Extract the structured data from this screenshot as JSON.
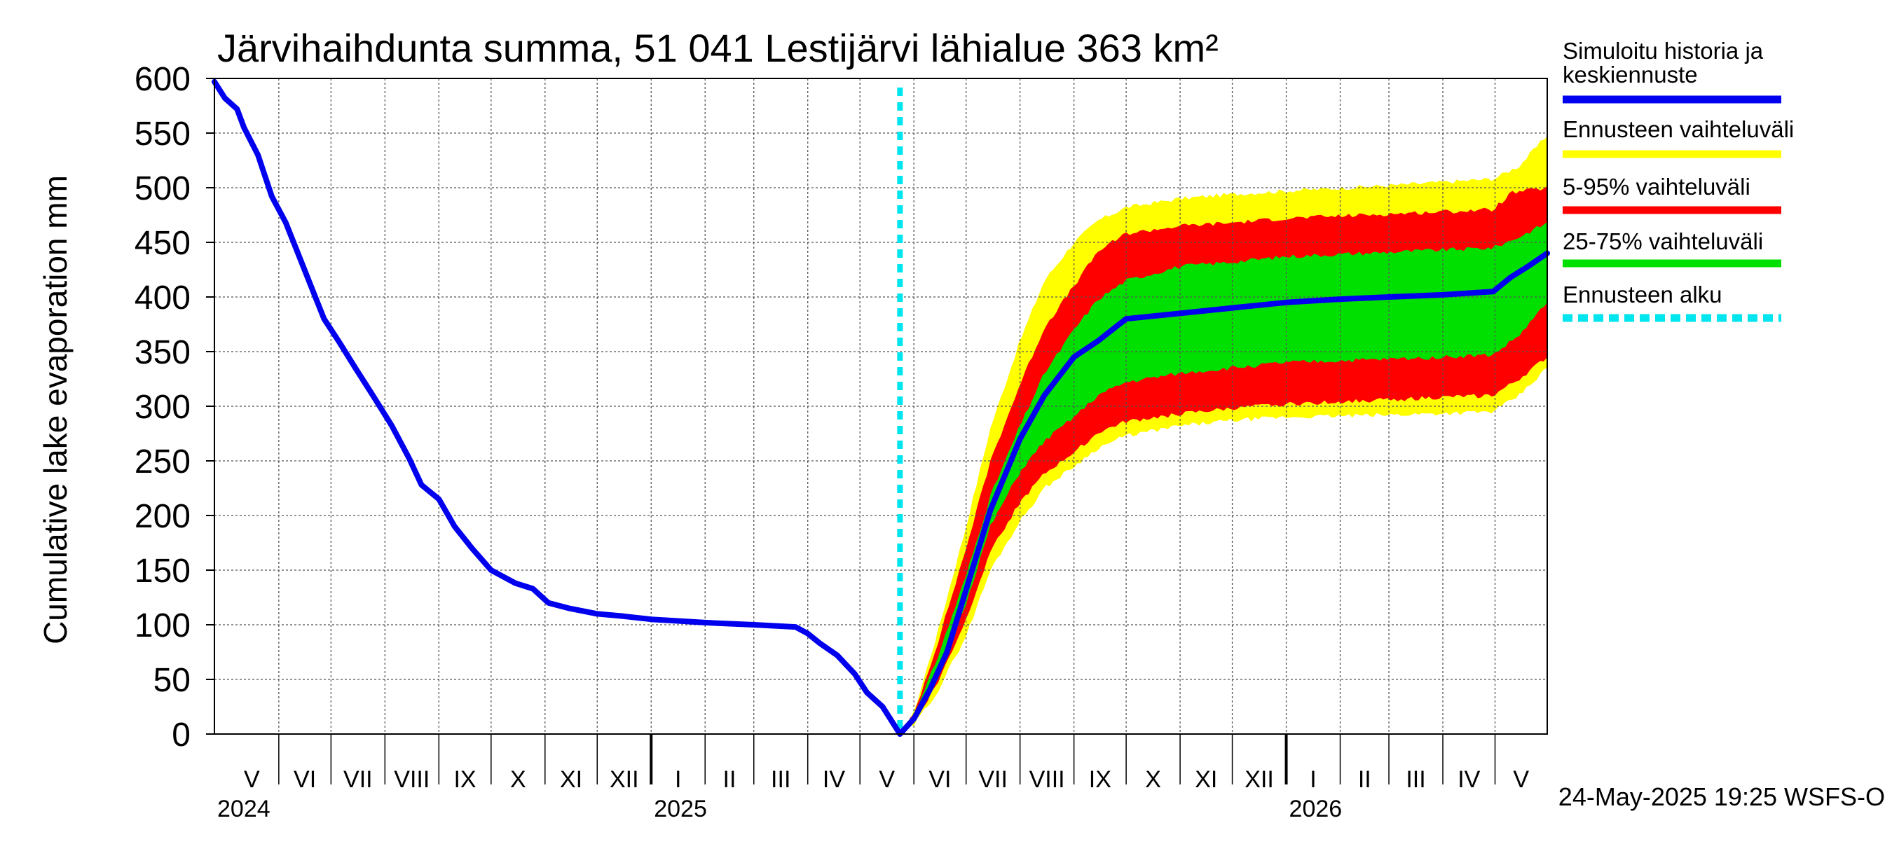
{
  "chart_data": {
    "type": "area",
    "title": "Järvihaihdunta summa, 51 041 Lestijärvi lähialue 363 km²",
    "ylabel": "Cumulative lake evaporation   mm",
    "ylim": [
      0,
      600
    ],
    "xlim": [
      "2024-04-25",
      "2026-05-31"
    ],
    "yticks": [
      0,
      50,
      100,
      150,
      200,
      250,
      300,
      350,
      400,
      450,
      500,
      550,
      600
    ],
    "grid": true,
    "legend_position": "right",
    "months": [
      {
        "label": "V",
        "start": "2024-05-01",
        "end": "2024-06-01"
      },
      {
        "label": "VI",
        "start": "2024-06-01",
        "end": "2024-07-01"
      },
      {
        "label": "VII",
        "start": "2024-07-01",
        "end": "2024-08-01"
      },
      {
        "label": "VIII",
        "start": "2024-08-01",
        "end": "2024-09-01"
      },
      {
        "label": "IX",
        "start": "2024-09-01",
        "end": "2024-10-01"
      },
      {
        "label": "X",
        "start": "2024-10-01",
        "end": "2024-11-01"
      },
      {
        "label": "XI",
        "start": "2024-11-01",
        "end": "2024-12-01"
      },
      {
        "label": "XII",
        "start": "2024-12-01",
        "end": "2025-01-01"
      },
      {
        "label": "I",
        "start": "2025-01-01",
        "end": "2025-02-01"
      },
      {
        "label": "II",
        "start": "2025-02-01",
        "end": "2025-03-01"
      },
      {
        "label": "III",
        "start": "2025-03-01",
        "end": "2025-04-01"
      },
      {
        "label": "IV",
        "start": "2025-04-01",
        "end": "2025-05-01"
      },
      {
        "label": "V",
        "start": "2025-05-01",
        "end": "2025-06-01"
      },
      {
        "label": "VI",
        "start": "2025-06-01",
        "end": "2025-07-01"
      },
      {
        "label": "VII",
        "start": "2025-07-01",
        "end": "2025-08-01"
      },
      {
        "label": "VIII",
        "start": "2025-08-01",
        "end": "2025-09-01"
      },
      {
        "label": "IX",
        "start": "2025-09-01",
        "end": "2025-10-01"
      },
      {
        "label": "X",
        "start": "2025-10-01",
        "end": "2025-11-01"
      },
      {
        "label": "XI",
        "start": "2025-11-01",
        "end": "2025-12-01"
      },
      {
        "label": "XII",
        "start": "2025-12-01",
        "end": "2026-01-01"
      },
      {
        "label": "I",
        "start": "2026-01-01",
        "end": "2026-02-01"
      },
      {
        "label": "II",
        "start": "2026-02-01",
        "end": "2026-03-01"
      },
      {
        "label": "III",
        "start": "2026-03-01",
        "end": "2026-04-01"
      },
      {
        "label": "IV",
        "start": "2026-04-01",
        "end": "2026-05-01"
      },
      {
        "label": "V",
        "start": "2026-05-01",
        "end": "2026-06-01"
      }
    ],
    "years": [
      {
        "label": "2024",
        "date": "2024-04-25"
      },
      {
        "label": "2025",
        "date": "2025-01-01"
      },
      {
        "label": "2026",
        "date": "2026-01-01"
      }
    ],
    "forecast_start": "2025-05-24",
    "bands": [
      {
        "name": "Ennusteen vaihteluväli",
        "color": "#ffff00",
        "upper": [
          [
            "2025-05-24",
            0
          ],
          [
            "2025-06-01",
            20
          ],
          [
            "2025-06-15",
            95
          ],
          [
            "2025-07-01",
            190
          ],
          [
            "2025-07-15",
            280
          ],
          [
            "2025-08-01",
            360
          ],
          [
            "2025-08-15",
            415
          ],
          [
            "2025-09-01",
            450
          ],
          [
            "2025-09-15",
            470
          ],
          [
            "2025-10-01",
            482
          ],
          [
            "2025-11-01",
            490
          ],
          [
            "2025-12-01",
            494
          ],
          [
            "2026-01-01",
            497
          ],
          [
            "2026-03-01",
            502
          ],
          [
            "2026-04-30",
            508
          ],
          [
            "2026-05-15",
            520
          ],
          [
            "2026-05-31",
            548
          ]
        ],
        "lower": [
          [
            "2025-05-24",
            0
          ],
          [
            "2025-06-01",
            8
          ],
          [
            "2025-06-15",
            40
          ],
          [
            "2025-07-01",
            90
          ],
          [
            "2025-07-15",
            150
          ],
          [
            "2025-08-01",
            195
          ],
          [
            "2025-08-15",
            225
          ],
          [
            "2025-09-01",
            245
          ],
          [
            "2025-09-15",
            262
          ],
          [
            "2025-10-01",
            273
          ],
          [
            "2025-11-01",
            282
          ],
          [
            "2025-12-01",
            287
          ],
          [
            "2026-01-01",
            290
          ],
          [
            "2026-03-01",
            292
          ],
          [
            "2026-04-30",
            295
          ],
          [
            "2026-05-15",
            310
          ],
          [
            "2026-05-31",
            335
          ]
        ]
      },
      {
        "name": "5-95% vaihteluväli",
        "color": "#ff0000",
        "upper": [
          [
            "2025-05-24",
            0
          ],
          [
            "2025-06-01",
            18
          ],
          [
            "2025-06-15",
            85
          ],
          [
            "2025-07-01",
            170
          ],
          [
            "2025-07-15",
            250
          ],
          [
            "2025-08-01",
            320
          ],
          [
            "2025-08-15",
            372
          ],
          [
            "2025-09-01",
            410
          ],
          [
            "2025-09-15",
            442
          ],
          [
            "2025-10-01",
            458
          ],
          [
            "2025-11-01",
            465
          ],
          [
            "2025-12-01",
            468
          ],
          [
            "2026-01-01",
            472
          ],
          [
            "2026-03-01",
            476
          ],
          [
            "2026-04-30",
            480
          ],
          [
            "2026-05-10",
            495
          ],
          [
            "2026-05-31",
            500
          ]
        ],
        "lower": [
          [
            "2025-05-24",
            0
          ],
          [
            "2025-06-01",
            10
          ],
          [
            "2025-06-15",
            48
          ],
          [
            "2025-07-01",
            105
          ],
          [
            "2025-07-15",
            168
          ],
          [
            "2025-08-01",
            212
          ],
          [
            "2025-08-15",
            238
          ],
          [
            "2025-09-01",
            258
          ],
          [
            "2025-09-15",
            276
          ],
          [
            "2025-10-01",
            286
          ],
          [
            "2025-11-01",
            293
          ],
          [
            "2025-12-01",
            298
          ],
          [
            "2026-01-01",
            302
          ],
          [
            "2026-03-01",
            306
          ],
          [
            "2026-04-30",
            310
          ],
          [
            "2026-05-15",
            325
          ],
          [
            "2026-05-31",
            345
          ]
        ]
      },
      {
        "name": "25-75% vaihteluväli",
        "color": "#00e000",
        "upper": [
          [
            "2025-05-24",
            0
          ],
          [
            "2025-06-01",
            15
          ],
          [
            "2025-06-15",
            72
          ],
          [
            "2025-07-01",
            145
          ],
          [
            "2025-07-15",
            218
          ],
          [
            "2025-08-01",
            282
          ],
          [
            "2025-08-15",
            330
          ],
          [
            "2025-09-01",
            370
          ],
          [
            "2025-09-15",
            398
          ],
          [
            "2025-10-01",
            415
          ],
          [
            "2025-11-01",
            428
          ],
          [
            "2025-12-01",
            432
          ],
          [
            "2026-01-01",
            437
          ],
          [
            "2026-03-01",
            441
          ],
          [
            "2026-04-30",
            445
          ],
          [
            "2026-05-15",
            455
          ],
          [
            "2026-05-31",
            468
          ]
        ],
        "lower": [
          [
            "2025-05-24",
            0
          ],
          [
            "2025-06-01",
            12
          ],
          [
            "2025-06-15",
            58
          ],
          [
            "2025-07-01",
            120
          ],
          [
            "2025-07-15",
            190
          ],
          [
            "2025-08-01",
            240
          ],
          [
            "2025-08-15",
            268
          ],
          [
            "2025-09-01",
            290
          ],
          [
            "2025-09-15",
            310
          ],
          [
            "2025-10-01",
            322
          ],
          [
            "2025-11-01",
            330
          ],
          [
            "2025-12-01",
            335
          ],
          [
            "2026-01-01",
            340
          ],
          [
            "2026-03-01",
            343
          ],
          [
            "2026-04-30",
            347
          ],
          [
            "2026-05-15",
            365
          ],
          [
            "2026-05-31",
            395
          ]
        ]
      }
    ],
    "series": [
      {
        "name": "Simuloitu historia ja keskiennuste",
        "color": "#0000ee",
        "points": [
          [
            "2024-04-25",
            597
          ],
          [
            "2024-05-01",
            582
          ],
          [
            "2024-05-08",
            572
          ],
          [
            "2024-05-12",
            555
          ],
          [
            "2024-05-20",
            530
          ],
          [
            "2024-05-28",
            492
          ],
          [
            "2024-06-05",
            468
          ],
          [
            "2024-06-12",
            440
          ],
          [
            "2024-06-20",
            408
          ],
          [
            "2024-06-27",
            380
          ],
          [
            "2024-07-06",
            358
          ],
          [
            "2024-07-15",
            335
          ],
          [
            "2024-07-25",
            310
          ],
          [
            "2024-08-05",
            282
          ],
          [
            "2024-08-15",
            252
          ],
          [
            "2024-08-22",
            228
          ],
          [
            "2024-09-01",
            215
          ],
          [
            "2024-09-10",
            190
          ],
          [
            "2024-09-20",
            170
          ],
          [
            "2024-10-01",
            150
          ],
          [
            "2024-10-15",
            138
          ],
          [
            "2024-10-25",
            133
          ],
          [
            "2024-11-03",
            120
          ],
          [
            "2024-11-15",
            115
          ],
          [
            "2024-12-01",
            110
          ],
          [
            "2024-12-15",
            108
          ],
          [
            "2025-01-01",
            105
          ],
          [
            "2025-02-01",
            102
          ],
          [
            "2025-03-01",
            100
          ],
          [
            "2025-03-25",
            98
          ],
          [
            "2025-04-01",
            92
          ],
          [
            "2025-04-08",
            83
          ],
          [
            "2025-04-18",
            72
          ],
          [
            "2025-04-28",
            55
          ],
          [
            "2025-05-05",
            38
          ],
          [
            "2025-05-14",
            25
          ],
          [
            "2025-05-24",
            0
          ],
          [
            "2025-06-01",
            14
          ],
          [
            "2025-06-10",
            40
          ],
          [
            "2025-06-20",
            75
          ],
          [
            "2025-07-01",
            132
          ],
          [
            "2025-07-15",
            205
          ],
          [
            "2025-08-01",
            270
          ],
          [
            "2025-08-15",
            310
          ],
          [
            "2025-09-01",
            345
          ],
          [
            "2025-09-15",
            360
          ],
          [
            "2025-10-01",
            380
          ],
          [
            "2025-11-01",
            385
          ],
          [
            "2025-12-01",
            390
          ],
          [
            "2026-01-01",
            395
          ],
          [
            "2026-02-01",
            398
          ],
          [
            "2026-03-01",
            400
          ],
          [
            "2026-04-01",
            402
          ],
          [
            "2026-04-30",
            405
          ],
          [
            "2026-05-10",
            418
          ],
          [
            "2026-05-20",
            428
          ],
          [
            "2026-05-31",
            440
          ]
        ]
      }
    ],
    "legend": [
      {
        "label": "Simuloitu historia ja keskiennuste",
        "color": "#0000ee",
        "style": "solid"
      },
      {
        "label": "Ennusteen vaihteluväli",
        "color": "#ffff00",
        "style": "solid"
      },
      {
        "label": "5-95% vaihteluväli",
        "color": "#ff0000",
        "style": "solid"
      },
      {
        "label": "25-75% vaihteluväli",
        "color": "#00e000",
        "style": "solid"
      },
      {
        "label": "Ennusteen alku",
        "color": "#00e5ee",
        "style": "dashed"
      }
    ],
    "footer": "24-May-2025 19:25 WSFS-O"
  }
}
